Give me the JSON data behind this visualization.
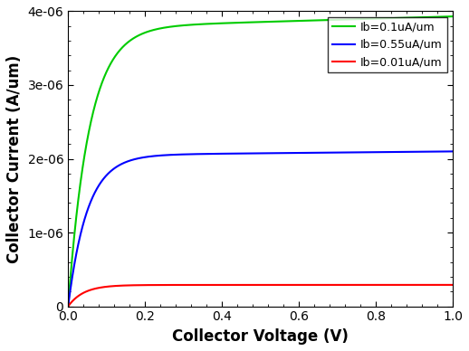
{
  "title": "",
  "xlabel": "Collector Voltage (V)",
  "ylabel": "Collector Current (A/um)",
  "xlim": [
    0,
    1.0
  ],
  "ylim": [
    0,
    4e-06
  ],
  "yticks": [
    0,
    1e-06,
    2e-06,
    3e-06,
    4e-06
  ],
  "xticks": [
    0,
    0.2,
    0.4,
    0.6,
    0.8,
    1.0
  ],
  "curves": [
    {
      "label": "Ib=0.1uA/um",
      "color": "#00cc00",
      "Ic_sat": 3.78e-06,
      "Ic_final": 3.85e-06,
      "V_knee": 0.055,
      "slope": 1.5e-07
    },
    {
      "label": "Ib=0.55uA/um",
      "color": "#0000ff",
      "Ic_sat": 2.05e-06,
      "Ic_final": 2.15e-06,
      "V_knee": 0.05,
      "slope": 5e-08
    },
    {
      "label": "Ib=0.01uA/um",
      "color": "#ff0000",
      "Ic_sat": 2.9e-07,
      "Ic_final": 3.1e-07,
      "V_knee": 0.04,
      "slope": 1e-09
    }
  ],
  "legend_loc": "upper right",
  "background_color": "#ffffff",
  "axis_background": "#ffffff",
  "linewidth": 1.5,
  "xlabel_fontsize": 12,
  "ylabel_fontsize": 12,
  "tick_fontsize": 10
}
